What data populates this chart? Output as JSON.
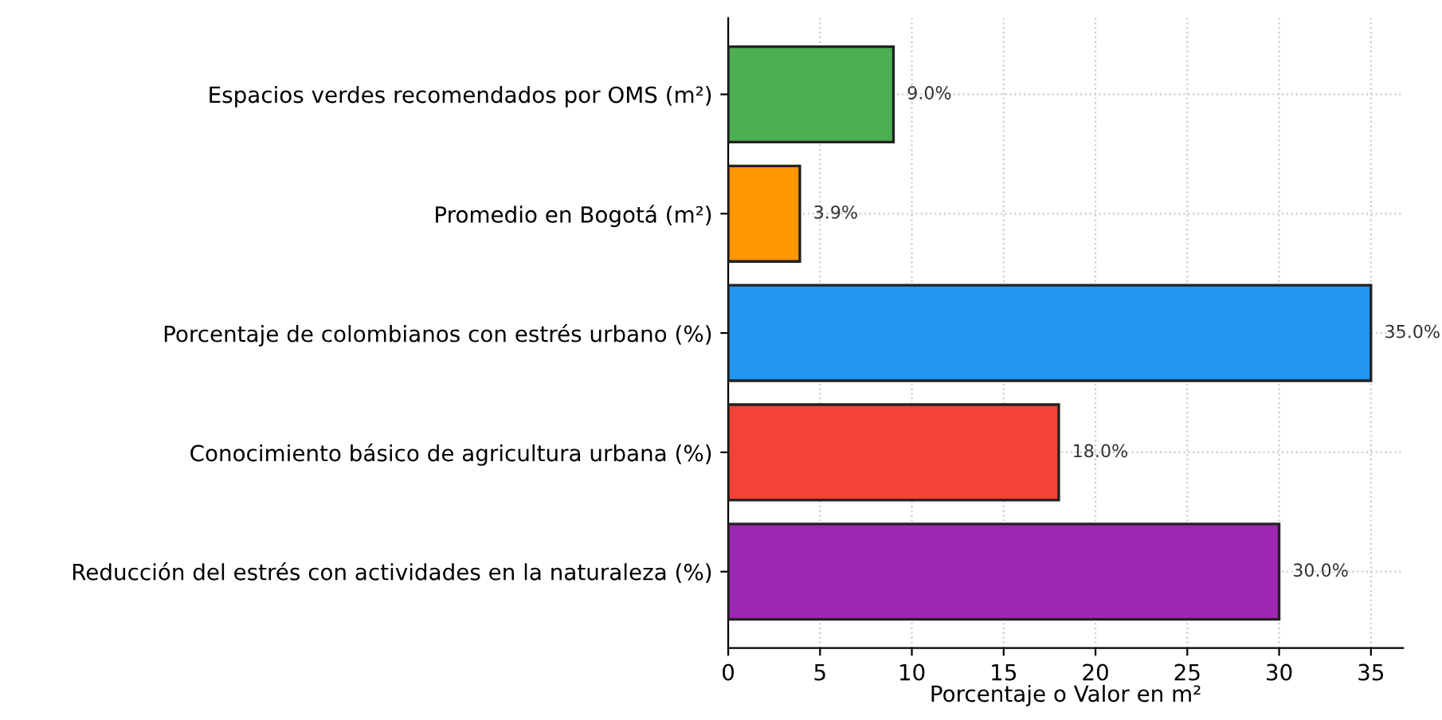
{
  "chart_data": {
    "type": "bar",
    "orientation": "horizontal",
    "xlabel": "Porcentaje o Valor en m²",
    "categories": [
      "Espacios verdes recomendados por OMS (m²)",
      "Promedio en Bogotá (m²)",
      "Porcentaje de colombianos con estrés urbano (%)",
      "Conocimiento básico de agricultura urbana (%)",
      "Reducción del estrés con actividades en la naturaleza (%)"
    ],
    "values": [
      9,
      3.9,
      35,
      18,
      30
    ],
    "colors": [
      "#4caf50",
      "#ff9800",
      "#2196f3",
      "#f44336",
      "#9c27b0"
    ],
    "value_labels": [
      "9.0%",
      "3.9%",
      "35.0%",
      "18.0%",
      "30.0%"
    ],
    "xlim": [
      0,
      36.75
    ],
    "xticks": [
      0,
      5,
      10,
      15,
      20,
      25,
      30,
      35
    ],
    "grid": true
  }
}
